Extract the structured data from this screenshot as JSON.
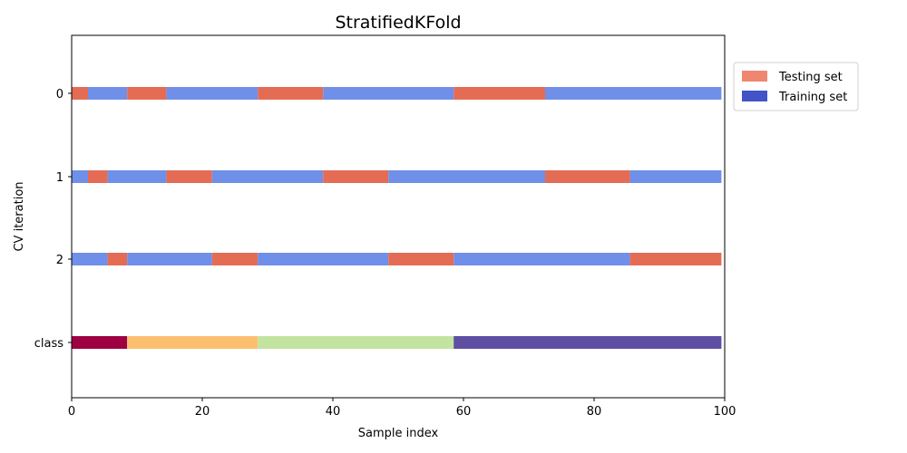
{
  "chart_data": {
    "type": "bar",
    "title": "StratifiedKFold",
    "xlabel": "Sample index",
    "ylabel": "CV iteration",
    "xlim": [
      0,
      100
    ],
    "x_ticks": [
      0,
      20,
      40,
      60,
      80,
      100
    ],
    "rows": [
      "0",
      "1",
      "2",
      "class"
    ],
    "legend": {
      "placement": "outside-upper-right",
      "items": [
        {
          "label": "Testing set",
          "color": "#ef8670"
        },
        {
          "label": "Training set",
          "color": "#4353c8"
        }
      ]
    },
    "colors": {
      "testing": "#e46c55",
      "training": "#6f8fe9"
    },
    "series": [
      {
        "row": "0",
        "segments": [
          {
            "start": 0,
            "end": 3,
            "set": "testing"
          },
          {
            "start": 3,
            "end": 9,
            "set": "training"
          },
          {
            "start": 9,
            "end": 15,
            "set": "testing"
          },
          {
            "start": 15,
            "end": 29,
            "set": "training"
          },
          {
            "start": 29,
            "end": 39,
            "set": "testing"
          },
          {
            "start": 39,
            "end": 59,
            "set": "training"
          },
          {
            "start": 59,
            "end": 73,
            "set": "testing"
          },
          {
            "start": 73,
            "end": 100,
            "set": "training"
          }
        ]
      },
      {
        "row": "1",
        "segments": [
          {
            "start": 0,
            "end": 3,
            "set": "training"
          },
          {
            "start": 3,
            "end": 6,
            "set": "testing"
          },
          {
            "start": 6,
            "end": 15,
            "set": "training"
          },
          {
            "start": 15,
            "end": 22,
            "set": "testing"
          },
          {
            "start": 22,
            "end": 39,
            "set": "training"
          },
          {
            "start": 39,
            "end": 49,
            "set": "testing"
          },
          {
            "start": 49,
            "end": 73,
            "set": "training"
          },
          {
            "start": 73,
            "end": 86,
            "set": "testing"
          },
          {
            "start": 86,
            "end": 100,
            "set": "training"
          }
        ]
      },
      {
        "row": "2",
        "segments": [
          {
            "start": 0,
            "end": 6,
            "set": "training"
          },
          {
            "start": 6,
            "end": 9,
            "set": "testing"
          },
          {
            "start": 9,
            "end": 22,
            "set": "training"
          },
          {
            "start": 22,
            "end": 29,
            "set": "testing"
          },
          {
            "start": 29,
            "end": 49,
            "set": "training"
          },
          {
            "start": 49,
            "end": 59,
            "set": "testing"
          },
          {
            "start": 59,
            "end": 86,
            "set": "training"
          },
          {
            "start": 86,
            "end": 100,
            "set": "testing"
          }
        ]
      }
    ],
    "class_row": {
      "row": "class",
      "segments": [
        {
          "start": 0,
          "end": 9,
          "class": 0,
          "color": "#9e0142"
        },
        {
          "start": 9,
          "end": 29,
          "class": 1,
          "color": "#fdbf6f"
        },
        {
          "start": 29,
          "end": 59,
          "class": 2,
          "color": "#c2e4a0"
        },
        {
          "start": 59,
          "end": 100,
          "class": 3,
          "color": "#5e4fa2"
        }
      ]
    },
    "grid": false
  }
}
